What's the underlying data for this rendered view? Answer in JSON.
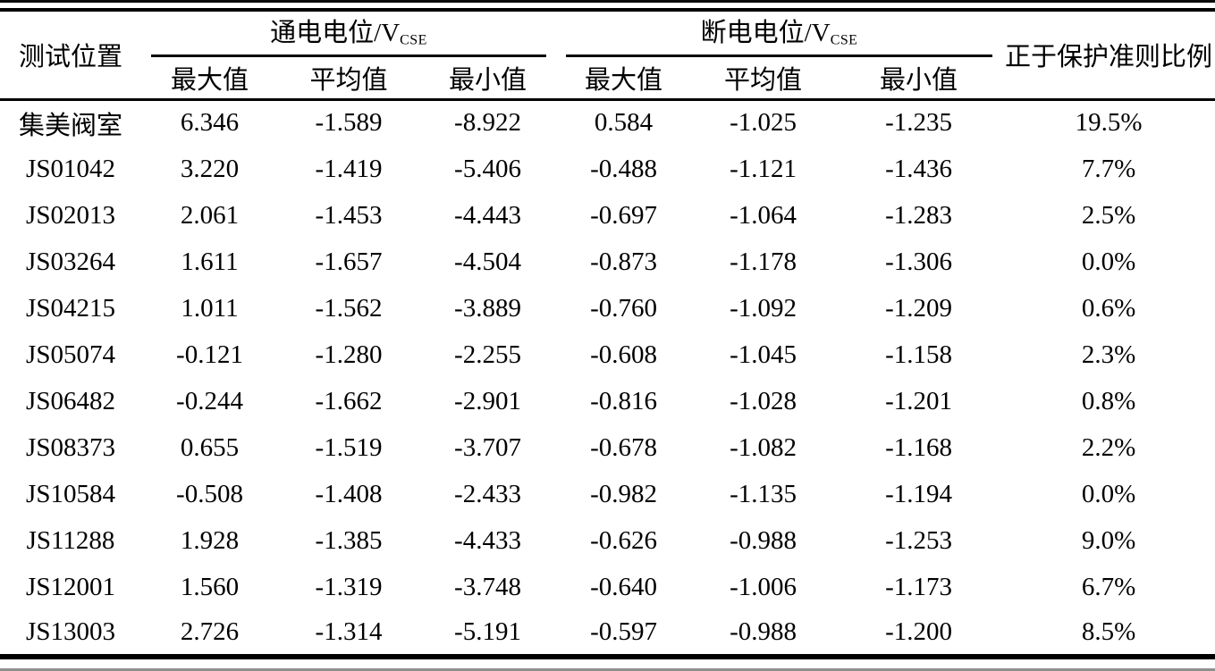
{
  "table": {
    "location_header": "测试位置",
    "ratio_header": "正于保护准则比例",
    "groups": [
      {
        "title": "通电电位/V",
        "subscript": "CSE"
      },
      {
        "title": "断电电位/V",
        "subscript": "CSE"
      }
    ],
    "sub_headers": [
      "最大值",
      "平均值",
      "最小值"
    ],
    "rows": [
      [
        "集美阀室",
        "6.346",
        "-1.589",
        "-8.922",
        "0.584",
        "-1.025",
        "-1.235",
        "19.5%"
      ],
      [
        "JS01042",
        "3.220",
        "-1.419",
        "-5.406",
        "-0.488",
        "-1.121",
        "-1.436",
        "7.7%"
      ],
      [
        "JS02013",
        "2.061",
        "-1.453",
        "-4.443",
        "-0.697",
        "-1.064",
        "-1.283",
        "2.5%"
      ],
      [
        "JS03264",
        "1.611",
        "-1.657",
        "-4.504",
        "-0.873",
        "-1.178",
        "-1.306",
        "0.0%"
      ],
      [
        "JS04215",
        "1.011",
        "-1.562",
        "-3.889",
        "-0.760",
        "-1.092",
        "-1.209",
        "0.6%"
      ],
      [
        "JS05074",
        "-0.121",
        "-1.280",
        "-2.255",
        "-0.608",
        "-1.045",
        "-1.158",
        "2.3%"
      ],
      [
        "JS06482",
        "-0.244",
        "-1.662",
        "-2.901",
        "-0.816",
        "-1.028",
        "-1.201",
        "0.8%"
      ],
      [
        "JS08373",
        "0.655",
        "-1.519",
        "-3.707",
        "-0.678",
        "-1.082",
        "-1.168",
        "2.2%"
      ],
      [
        "JS10584",
        "-0.508",
        "-1.408",
        "-2.433",
        "-0.982",
        "-1.135",
        "-1.194",
        "0.0%"
      ],
      [
        "JS11288",
        "1.928",
        "-1.385",
        "-4.433",
        "-0.626",
        "-0.988",
        "-1.253",
        "9.0%"
      ],
      [
        "JS12001",
        "1.560",
        "-1.319",
        "-3.748",
        "-0.640",
        "-1.006",
        "-1.173",
        "6.7%"
      ],
      [
        "JS13003",
        "2.726",
        "-1.314",
        "-5.191",
        "-0.597",
        "-0.988",
        "-1.200",
        "8.5%"
      ]
    ]
  },
  "colors": {
    "rule": "#000000",
    "text": "#000000",
    "background": "#ffffff"
  }
}
